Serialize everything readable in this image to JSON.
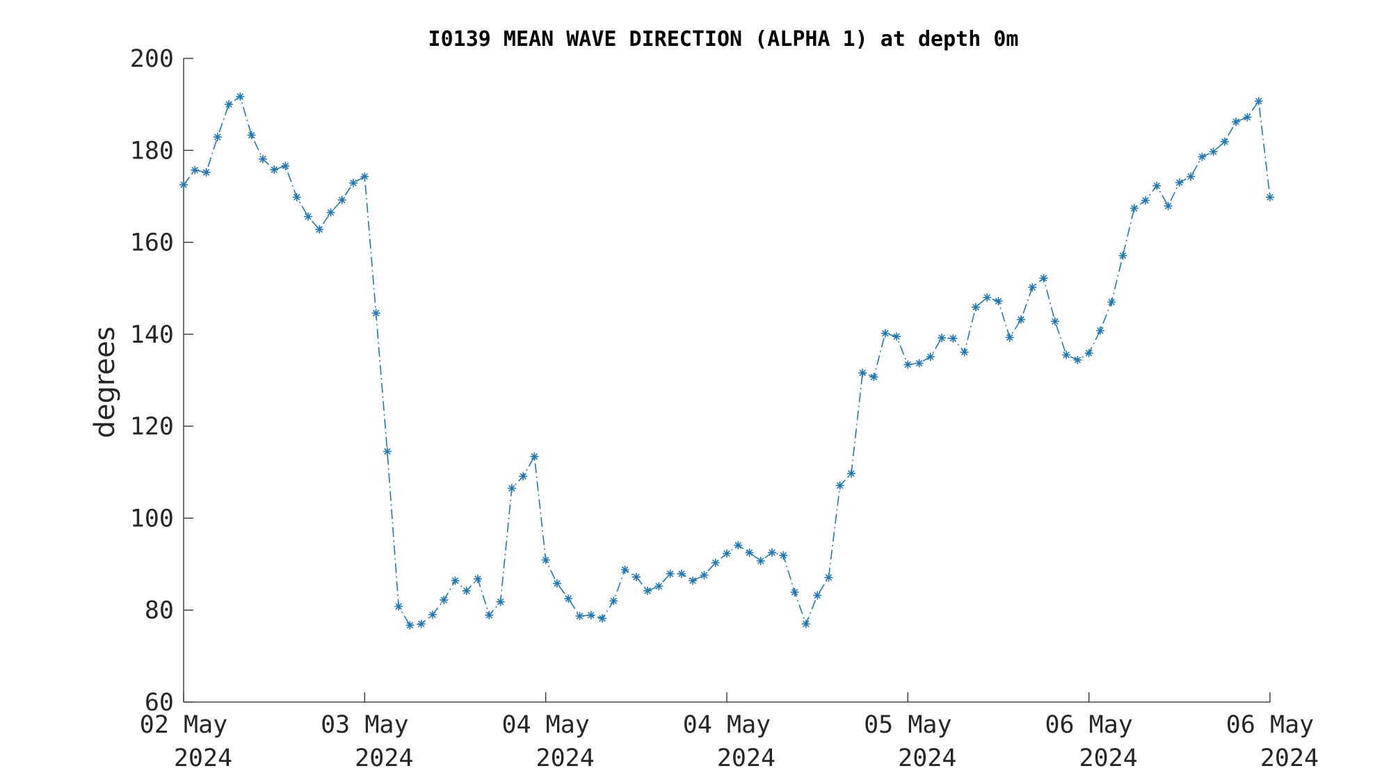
{
  "chart_data": {
    "type": "line",
    "title": "I0139 MEAN WAVE DIRECTION (ALPHA 1) at depth 0m",
    "ylabel": "degrees",
    "xlabel": "",
    "ylim": [
      60,
      200
    ],
    "yticks": [
      60,
      80,
      100,
      120,
      140,
      160,
      180,
      200
    ],
    "xlim": [
      0,
      96
    ],
    "xtick_positions": [
      0,
      16,
      32,
      48,
      64,
      80,
      96
    ],
    "xtick_labels": [
      [
        "02 May",
        "2024"
      ],
      [
        "03 May",
        "2024"
      ],
      [
        "04 May",
        "2024"
      ],
      [
        "04 May",
        "2024"
      ],
      [
        "05 May",
        "2024"
      ],
      [
        "06 May",
        "2024"
      ],
      [
        "06 May",
        "2024"
      ]
    ],
    "line_style": "dash-dot",
    "marker": "asterisk",
    "color": "#1f77b4",
    "grid": false,
    "series": [
      {
        "values": [
          172.5,
          175.7,
          175.2,
          182.9,
          190.0,
          191.7,
          183.3,
          178.1,
          175.8,
          176.6,
          169.8,
          165.6,
          162.8,
          166.5,
          169.2,
          172.9,
          174.3,
          144.6,
          114.5,
          80.8,
          76.7,
          77.0,
          79.0,
          82.2,
          86.4,
          84.2,
          86.8,
          78.9,
          81.8,
          106.5,
          109.1,
          113.4,
          90.9,
          85.8,
          82.5,
          78.7,
          78.9,
          78.2,
          82.0,
          88.8,
          87.2,
          84.2,
          85.2,
          87.9,
          87.9,
          86.4,
          87.6,
          90.3,
          92.3,
          94.1,
          92.5,
          90.7,
          92.5,
          91.9,
          83.9,
          77.0,
          83.2,
          87.1,
          107.1,
          109.7,
          131.6,
          130.7,
          140.2,
          139.5,
          133.4,
          133.7,
          135.1,
          139.2,
          139.1,
          136.1,
          145.9,
          148.0,
          147.2,
          139.3,
          143.2,
          150.2,
          152.2,
          142.8,
          135.5,
          134.4,
          135.9,
          140.8,
          147.0,
          157.1,
          167.4,
          169.1,
          172.3,
          167.9,
          173.0,
          174.3,
          178.6,
          179.7,
          181.9,
          186.2,
          187.2,
          190.7,
          169.8
        ]
      }
    ]
  }
}
